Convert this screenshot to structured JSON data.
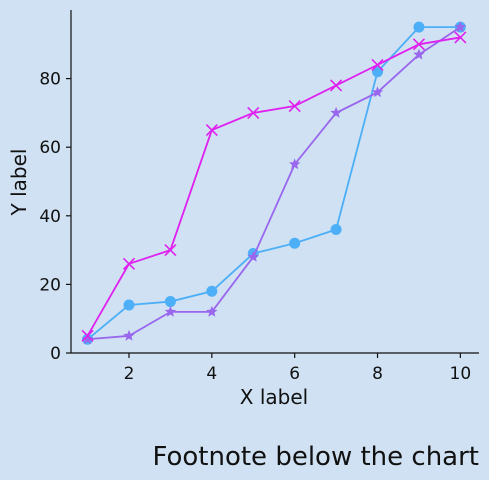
{
  "chart_data": {
    "type": "line",
    "title": "",
    "xlabel": "X label",
    "ylabel": "Y label",
    "footnote": "Footnote below the chart",
    "xlim": [
      0.6,
      10.45
    ],
    "ylim": [
      0,
      100
    ],
    "xticks": [
      2,
      4,
      6,
      8,
      10
    ],
    "yticks": [
      0,
      20,
      40,
      60,
      80
    ],
    "grid": false,
    "legend": "none",
    "x": [
      1,
      2,
      3,
      4,
      5,
      6,
      7,
      8,
      9,
      10
    ],
    "series": [
      {
        "color": "#4daff7",
        "marker": "circle",
        "values": [
          4,
          14,
          15,
          18,
          29,
          32,
          36,
          82,
          95,
          95
        ]
      },
      {
        "color": "#9966ee",
        "marker": "star",
        "values": [
          4,
          5,
          12,
          12,
          28,
          55,
          70,
          76,
          87,
          95
        ]
      },
      {
        "color": "#e020f0",
        "marker": "x",
        "values": [
          5,
          26,
          30,
          65,
          70,
          72,
          78,
          84,
          90,
          92
        ]
      }
    ]
  }
}
